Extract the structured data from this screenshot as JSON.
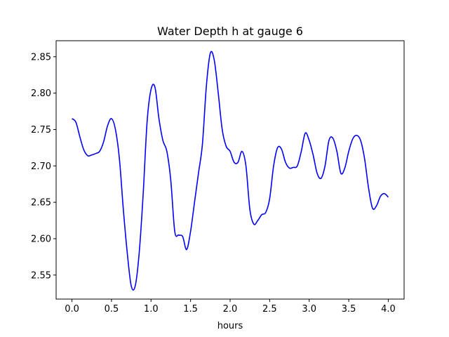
{
  "chart_data": {
    "type": "line",
    "title": "Water Depth h at gauge 6",
    "xlabel": "hours",
    "ylabel": "",
    "xlim": [
      -0.2,
      4.2
    ],
    "ylim": [
      2.517,
      2.872
    ],
    "xticks": [
      0.0,
      0.5,
      1.0,
      1.5,
      2.0,
      2.5,
      3.0,
      3.5,
      4.0
    ],
    "xtick_labels": [
      "0.0",
      "0.5",
      "1.0",
      "1.5",
      "2.0",
      "2.5",
      "3.0",
      "3.5",
      "4.0"
    ],
    "yticks": [
      2.55,
      2.6,
      2.65,
      2.7,
      2.75,
      2.8,
      2.85
    ],
    "ytick_labels": [
      "2.55",
      "2.60",
      "2.65",
      "2.70",
      "2.75",
      "2.80",
      "2.85"
    ],
    "grid": false,
    "legend": "none",
    "series": [
      {
        "color": "#0000ff",
        "x": [
          0.0,
          0.05,
          0.1,
          0.15,
          0.2,
          0.25,
          0.3,
          0.35,
          0.4,
          0.45,
          0.5,
          0.55,
          0.6,
          0.65,
          0.7,
          0.75,
          0.8,
          0.85,
          0.9,
          0.95,
          1.0,
          1.05,
          1.1,
          1.15,
          1.2,
          1.25,
          1.3,
          1.35,
          1.4,
          1.45,
          1.5,
          1.55,
          1.6,
          1.65,
          1.7,
          1.75,
          1.8,
          1.85,
          1.9,
          1.95,
          2.0,
          2.05,
          2.1,
          2.15,
          2.2,
          2.25,
          2.3,
          2.35,
          2.4,
          2.45,
          2.5,
          2.55,
          2.6,
          2.65,
          2.7,
          2.75,
          2.8,
          2.85,
          2.9,
          2.95,
          3.0,
          3.05,
          3.1,
          3.15,
          3.2,
          3.25,
          3.3,
          3.35,
          3.4,
          3.45,
          3.5,
          3.55,
          3.6,
          3.65,
          3.7,
          3.75,
          3.8,
          3.85,
          3.9,
          3.95,
          4.0
        ],
        "y": [
          2.765,
          2.76,
          2.74,
          2.722,
          2.714,
          2.715,
          2.717,
          2.72,
          2.733,
          2.755,
          2.765,
          2.75,
          2.71,
          2.64,
          2.58,
          2.535,
          2.535,
          2.58,
          2.66,
          2.76,
          2.805,
          2.808,
          2.765,
          2.735,
          2.72,
          2.68,
          2.61,
          2.605,
          2.603,
          2.585,
          2.61,
          2.65,
          2.69,
          2.73,
          2.81,
          2.855,
          2.845,
          2.8,
          2.75,
          2.727,
          2.72,
          2.705,
          2.705,
          2.72,
          2.7,
          2.64,
          2.62,
          2.625,
          2.633,
          2.636,
          2.655,
          2.7,
          2.725,
          2.723,
          2.705,
          2.697,
          2.698,
          2.7,
          2.72,
          2.745,
          2.735,
          2.715,
          2.69,
          2.683,
          2.7,
          2.735,
          2.738,
          2.72,
          2.69,
          2.697,
          2.72,
          2.737,
          2.742,
          2.735,
          2.71,
          2.67,
          2.642,
          2.645,
          2.658,
          2.662,
          2.657
        ]
      }
    ]
  }
}
